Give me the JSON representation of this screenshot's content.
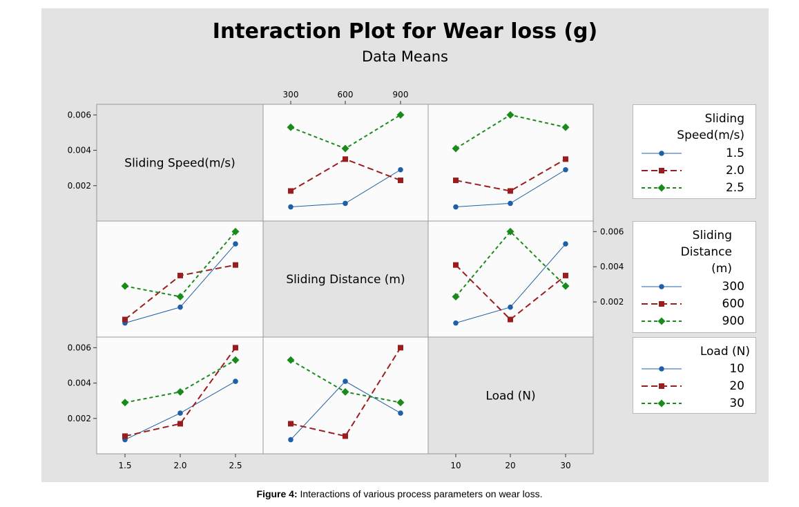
{
  "title": "Interaction Plot for Wear loss (g)",
  "subtitle": "Data Means",
  "caption": {
    "label": "Figure 4:",
    "text": "Interactions of various process parameters on wear loss."
  },
  "colors": {
    "blue": "#1f5fa8",
    "red": "#9b1c1c",
    "green": "#1a8a1a",
    "panel": "#fbfbfb",
    "diag": "#e3e3e3"
  },
  "factors": [
    {
      "name": "Sliding Speed(m/s)",
      "levels": [
        "1.5",
        "2.0",
        "2.5"
      ],
      "legend_title": [
        "Sliding",
        "Speed(m/s)"
      ]
    },
    {
      "name": "Sliding Distance (m)",
      "levels": [
        "300",
        "600",
        "900"
      ],
      "legend_title": [
        "Sliding",
        "Distance",
        "(m)"
      ]
    },
    {
      "name": "Load (N)",
      "levels": [
        "10",
        "20",
        "30"
      ],
      "legend_title": [
        "Load (N)"
      ]
    }
  ],
  "y_ticks": [
    "0.002",
    "0.004",
    "0.006"
  ],
  "chart_data": {
    "type": "line",
    "title": "Interaction Plot for Wear loss (g)",
    "subtitle": "Data Means",
    "ylim": [
      0.0,
      0.0066
    ],
    "panels": [
      {
        "row": 0,
        "col": 1,
        "x_factor": "Sliding Distance (m)",
        "trace_factor": "Sliding Speed(m/s)",
        "x": [
          "300",
          "600",
          "900"
        ],
        "series": [
          {
            "name": "1.5",
            "values": [
              0.0008,
              0.001,
              0.0029
            ]
          },
          {
            "name": "2.0",
            "values": [
              0.0017,
              0.0035,
              0.0023
            ]
          },
          {
            "name": "2.5",
            "values": [
              0.0053,
              0.0041,
              0.006
            ]
          }
        ]
      },
      {
        "row": 0,
        "col": 2,
        "x_factor": "Load (N)",
        "trace_factor": "Sliding Speed(m/s)",
        "x": [
          "10",
          "20",
          "30"
        ],
        "series": [
          {
            "name": "1.5",
            "values": [
              0.0008,
              0.001,
              0.0029
            ]
          },
          {
            "name": "2.0",
            "values": [
              0.0023,
              0.0017,
              0.0035
            ]
          },
          {
            "name": "2.5",
            "values": [
              0.0041,
              0.006,
              0.0053
            ]
          }
        ]
      },
      {
        "row": 1,
        "col": 0,
        "x_factor": "Sliding Speed(m/s)",
        "trace_factor": "Sliding Distance (m)",
        "x": [
          "1.5",
          "2.0",
          "2.5"
        ],
        "series": [
          {
            "name": "300",
            "values": [
              0.0008,
              0.0017,
              0.0053
            ]
          },
          {
            "name": "600",
            "values": [
              0.001,
              0.0035,
              0.0041
            ]
          },
          {
            "name": "900",
            "values": [
              0.0029,
              0.0023,
              0.006
            ]
          }
        ]
      },
      {
        "row": 1,
        "col": 2,
        "x_factor": "Load (N)",
        "trace_factor": "Sliding Distance (m)",
        "x": [
          "10",
          "20",
          "30"
        ],
        "series": [
          {
            "name": "300",
            "values": [
              0.0008,
              0.0017,
              0.0053
            ]
          },
          {
            "name": "600",
            "values": [
              0.0041,
              0.001,
              0.0035
            ]
          },
          {
            "name": "900",
            "values": [
              0.0023,
              0.006,
              0.0029
            ]
          }
        ]
      },
      {
        "row": 2,
        "col": 0,
        "x_factor": "Sliding Speed(m/s)",
        "trace_factor": "Load (N)",
        "x": [
          "1.5",
          "2.0",
          "2.5"
        ],
        "series": [
          {
            "name": "10",
            "values": [
              0.0008,
              0.0023,
              0.0041
            ]
          },
          {
            "name": "20",
            "values": [
              0.001,
              0.0017,
              0.006
            ]
          },
          {
            "name": "30",
            "values": [
              0.0029,
              0.0035,
              0.0053
            ]
          }
        ]
      },
      {
        "row": 2,
        "col": 1,
        "x_factor": "Sliding Distance (m)",
        "trace_factor": "Load (N)",
        "x": [
          "300",
          "600",
          "900"
        ],
        "series": [
          {
            "name": "10",
            "values": [
              0.0008,
              0.0041,
              0.0023
            ]
          },
          {
            "name": "20",
            "values": [
              0.0017,
              0.001,
              0.006
            ]
          },
          {
            "name": "30",
            "values": [
              0.0053,
              0.0035,
              0.0029
            ]
          }
        ]
      }
    ],
    "legends": [
      {
        "title": [
          "Sliding",
          "Speed(m/s)"
        ],
        "entries": [
          "1.5",
          "2.0",
          "2.5"
        ]
      },
      {
        "title": [
          "Sliding",
          "Distance",
          "(m)"
        ],
        "entries": [
          "300",
          "600",
          "900"
        ]
      },
      {
        "title": [
          "Load (N)"
        ],
        "entries": [
          "10",
          "20",
          "30"
        ]
      }
    ],
    "series_styles": [
      "blue solid circle",
      "red long-dash square",
      "green short-dash diamond"
    ],
    "grid": false,
    "legend_placement": "right"
  }
}
